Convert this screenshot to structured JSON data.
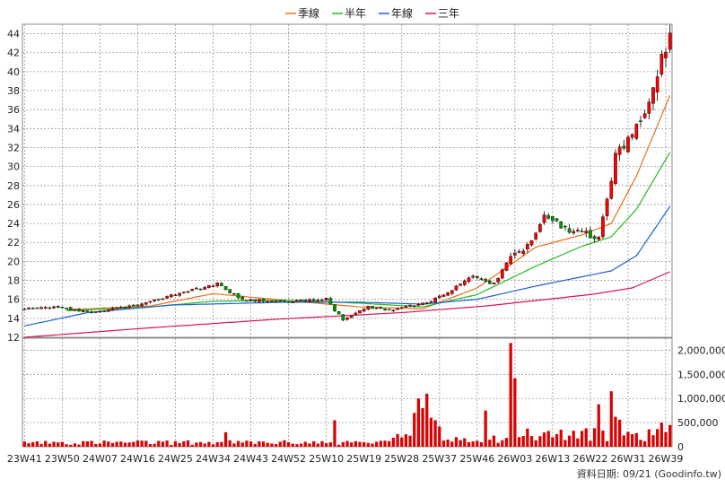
{
  "legend": [
    {
      "label": "季線",
      "color": "#e8701a"
    },
    {
      "label": "半年",
      "color": "#22bb22"
    },
    {
      "label": "年線",
      "color": "#1f5fd0"
    },
    {
      "label": "三年",
      "color": "#d4145a"
    }
  ],
  "footer": "資料日期: 09/21  (Goodinfo.tw)",
  "colors": {
    "up": "#ff0000",
    "down": "#009900",
    "volume": "#dd0000",
    "grid": "#999999"
  },
  "chart_data": [
    {
      "type": "candlestick",
      "ylim": [
        12,
        45
      ],
      "yticks": [
        12,
        14,
        16,
        18,
        20,
        22,
        24,
        26,
        28,
        30,
        32,
        34,
        36,
        38,
        40,
        42,
        44
      ],
      "x_tick_labels": [
        "23W41",
        "23W50",
        "24W07",
        "24W16",
        "24W25",
        "24W34",
        "24W43",
        "24W52",
        "25W10",
        "25W19",
        "25W28",
        "25W37",
        "25W46",
        "26W03",
        "26W13",
        "26W22",
        "26W31",
        "26W39"
      ],
      "weeks": 155,
      "close_anchors": [
        [
          0,
          15.0
        ],
        [
          8,
          15.2
        ],
        [
          15,
          14.6
        ],
        [
          22,
          15.0
        ],
        [
          30,
          15.7
        ],
        [
          38,
          16.8
        ],
        [
          46,
          17.6
        ],
        [
          52,
          15.9
        ],
        [
          62,
          15.8
        ],
        [
          72,
          16.0
        ],
        [
          76,
          13.8
        ],
        [
          82,
          15.2
        ],
        [
          88,
          14.8
        ],
        [
          92,
          15.3
        ],
        [
          97,
          15.8
        ],
        [
          102,
          17.0
        ],
        [
          107,
          18.5
        ],
        [
          112,
          17.6
        ],
        [
          116,
          20.5
        ],
        [
          121,
          22.0
        ],
        [
          124,
          25.0
        ],
        [
          128,
          23.5
        ],
        [
          133,
          23.0
        ],
        [
          137,
          22.5
        ],
        [
          141,
          31.0
        ],
        [
          145,
          34.0
        ],
        [
          149,
          37.0
        ],
        [
          152,
          41.0
        ],
        [
          154,
          43.8
        ]
      ],
      "ma_series": [
        {
          "name": "季線",
          "values": [
            [
              10,
              14.9
            ],
            [
              30,
              15.3
            ],
            [
              45,
              16.6
            ],
            [
              62,
              15.9
            ],
            [
              80,
              15.2
            ],
            [
              95,
              15.0
            ],
            [
              108,
              17.2
            ],
            [
              122,
              21.5
            ],
            [
              133,
              22.8
            ],
            [
              140,
              24.0
            ],
            [
              146,
              29.0
            ],
            [
              154,
              37.5
            ]
          ]
        },
        {
          "name": "半年",
          "values": [
            [
              10,
              14.8
            ],
            [
              30,
              15.2
            ],
            [
              45,
              15.8
            ],
            [
              62,
              15.9
            ],
            [
              80,
              15.6
            ],
            [
              95,
              15.2
            ],
            [
              108,
              16.5
            ],
            [
              122,
              19.5
            ],
            [
              133,
              21.6
            ],
            [
              140,
              22.6
            ],
            [
              146,
              25.5
            ],
            [
              154,
              31.5
            ]
          ]
        },
        {
          "name": "年線",
          "values": [
            [
              0,
              13.2
            ],
            [
              15,
              14.6
            ],
            [
              35,
              15.4
            ],
            [
              62,
              15.7
            ],
            [
              80,
              15.7
            ],
            [
              95,
              15.5
            ],
            [
              108,
              16.0
            ],
            [
              122,
              17.4
            ],
            [
              140,
              19.0
            ],
            [
              146,
              20.6
            ],
            [
              154,
              25.8
            ]
          ]
        },
        {
          "name": "三年",
          "values": [
            [
              0,
              12.0
            ],
            [
              30,
              13.0
            ],
            [
              60,
              13.9
            ],
            [
              90,
              14.6
            ],
            [
              110,
              15.3
            ],
            [
              135,
              16.5
            ],
            [
              145,
              17.2
            ],
            [
              154,
              18.9
            ]
          ]
        }
      ],
      "volume": {
        "ylim": [
          0,
          2250000
        ],
        "yticks": [
          0,
          500000,
          1000000,
          1500000,
          2000000
        ],
        "ytick_labels": [
          "0",
          "500,000",
          "1,000,000",
          "1,500,000",
          "2,000,000"
        ],
        "spikes": [
          [
            48,
            300000
          ],
          [
            74,
            550000
          ],
          [
            93,
            700000
          ],
          [
            94,
            1000000
          ],
          [
            95,
            800000
          ],
          [
            96,
            1100000
          ],
          [
            97,
            600000
          ],
          [
            98,
            550000
          ],
          [
            99,
            420000
          ],
          [
            110,
            750000
          ],
          [
            116,
            2150000
          ],
          [
            117,
            1420000
          ],
          [
            137,
            880000
          ],
          [
            140,
            1150000
          ],
          [
            141,
            620000
          ],
          [
            142,
            560000
          ],
          [
            152,
            500000
          ],
          [
            154,
            450000
          ]
        ]
      }
    }
  ]
}
